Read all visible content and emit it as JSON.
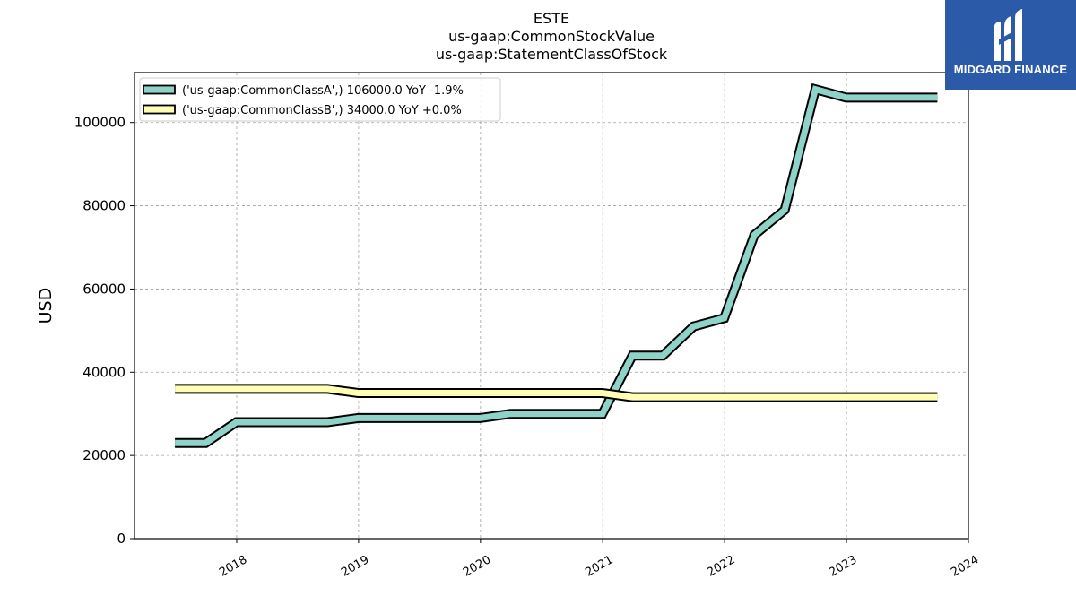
{
  "logo": {
    "text": "MIDGARD FINANCE",
    "icon": "midgard-finance-logo-icon",
    "color": "#2b5aa8"
  },
  "chart_data": {
    "type": "line",
    "title_lines": [
      "ESTE",
      "us-gaap:CommonStockValue",
      "us-gaap:StatementClassOfStock"
    ],
    "xlabel": "",
    "ylabel": "USD",
    "xlim": [
      "2017-03-01",
      "2024-01-01"
    ],
    "ylim": [
      0,
      112000
    ],
    "yticks": [
      0,
      20000,
      40000,
      60000,
      80000,
      100000
    ],
    "xticks": [
      "2018",
      "2019",
      "2020",
      "2021",
      "2022",
      "2023",
      "2024"
    ],
    "grid": true,
    "legend_position": "top-left",
    "series": [
      {
        "name": "('us-gaap:CommonClassA',) 106000.0 YoY -1.9%",
        "color": "#8dd3c7",
        "points": [
          [
            "2017-06-30",
            23000
          ],
          [
            "2017-09-30",
            23000
          ],
          [
            "2017-12-31",
            28000
          ],
          [
            "2018-03-31",
            28000
          ],
          [
            "2018-06-30",
            28000
          ],
          [
            "2018-09-30",
            28000
          ],
          [
            "2018-12-31",
            29000
          ],
          [
            "2019-03-31",
            29000
          ],
          [
            "2019-06-30",
            29000
          ],
          [
            "2019-09-30",
            29000
          ],
          [
            "2019-12-31",
            29000
          ],
          [
            "2020-03-31",
            30000
          ],
          [
            "2020-06-30",
            30000
          ],
          [
            "2020-09-30",
            30000
          ],
          [
            "2020-12-31",
            30000
          ],
          [
            "2021-03-31",
            44000
          ],
          [
            "2021-06-30",
            44000
          ],
          [
            "2021-09-30",
            51000
          ],
          [
            "2021-12-31",
            53000
          ],
          [
            "2022-03-31",
            73000
          ],
          [
            "2022-06-30",
            79000
          ],
          [
            "2022-09-30",
            108000
          ],
          [
            "2022-12-31",
            106000
          ],
          [
            "2023-03-31",
            106000
          ],
          [
            "2023-06-30",
            106000
          ],
          [
            "2023-09-30",
            106000
          ]
        ]
      },
      {
        "name": "('us-gaap:CommonClassB',) 34000.0 YoY +0.0%",
        "color": "#ffffb3",
        "points": [
          [
            "2017-06-30",
            36000
          ],
          [
            "2017-09-30",
            36000
          ],
          [
            "2017-12-31",
            36000
          ],
          [
            "2018-03-31",
            36000
          ],
          [
            "2018-06-30",
            36000
          ],
          [
            "2018-09-30",
            36000
          ],
          [
            "2018-12-31",
            35000
          ],
          [
            "2019-03-31",
            35000
          ],
          [
            "2019-06-30",
            35000
          ],
          [
            "2019-09-30",
            35000
          ],
          [
            "2019-12-31",
            35000
          ],
          [
            "2020-03-31",
            35000
          ],
          [
            "2020-06-30",
            35000
          ],
          [
            "2020-09-30",
            35000
          ],
          [
            "2020-12-31",
            35000
          ],
          [
            "2021-03-31",
            34000
          ],
          [
            "2021-06-30",
            34000
          ],
          [
            "2021-09-30",
            34000
          ],
          [
            "2021-12-31",
            34000
          ],
          [
            "2022-03-31",
            34000
          ],
          [
            "2022-06-30",
            34000
          ],
          [
            "2022-09-30",
            34000
          ],
          [
            "2022-12-31",
            34000
          ],
          [
            "2023-03-31",
            34000
          ],
          [
            "2023-06-30",
            34000
          ],
          [
            "2023-09-30",
            34000
          ]
        ]
      }
    ]
  }
}
